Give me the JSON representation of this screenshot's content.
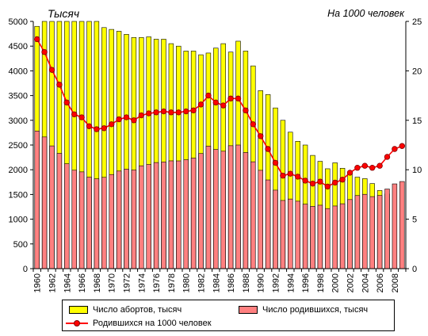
{
  "titles": {
    "left": "Тысяч",
    "right": "На 1000 человек"
  },
  "colors": {
    "abortions": "#ffff00",
    "births": "#ff8080",
    "rate": "#ff0000",
    "rate_marker_edge": "#800000",
    "bar_edge": "#000000"
  },
  "chart_data": {
    "type": "bar",
    "x": [
      1960,
      1961,
      1962,
      1963,
      1964,
      1965,
      1966,
      1967,
      1968,
      1969,
      1970,
      1971,
      1972,
      1973,
      1974,
      1975,
      1976,
      1977,
      1978,
      1979,
      1980,
      1981,
      1982,
      1983,
      1984,
      1985,
      1986,
      1987,
      1988,
      1989,
      1990,
      1991,
      1992,
      1993,
      1994,
      1995,
      1996,
      1997,
      1998,
      1999,
      2000,
      2001,
      2002,
      2003,
      2004,
      2005,
      2006,
      2007,
      2008,
      2009
    ],
    "x_tick_labels": [
      "1960",
      "1962",
      "1964",
      "1966",
      "1968",
      "1970",
      "1972",
      "1974",
      "1976",
      "1978",
      "1980",
      "1982",
      "1984",
      "1986",
      "1988",
      "1990",
      "1992",
      "1994",
      "1996",
      "1998",
      "2000",
      "2002",
      "2004",
      "2006",
      "2008"
    ],
    "y_left_ticks": [
      "0",
      "500",
      "1000",
      "1500",
      "2000",
      "2500",
      "3000",
      "3500",
      "4000",
      "4500",
      "5000"
    ],
    "y_right_ticks": [
      "0",
      "5",
      "10",
      "15",
      "20",
      "25"
    ],
    "ylim_left": [
      0,
      5000
    ],
    "ylim_right": [
      0,
      25
    ],
    "grid": false,
    "legend_position": "bottom",
    "series": [
      {
        "name": "Число абортов, тысяч",
        "kind": "bar",
        "axis": "left",
        "values": [
          4900,
          5000,
          5000,
          5000,
          5000,
          5000,
          5000,
          5000,
          5000,
          4875,
          4838,
          4800,
          4738,
          4675,
          4675,
          4688,
          4640,
          4640,
          4550,
          4500,
          4400,
          4400,
          4325,
          4360,
          4460,
          4550,
          4380,
          4600,
          4400,
          4100,
          3600,
          3520,
          3250,
          3000,
          2760,
          2575,
          2500,
          2290,
          2170,
          2020,
          2140,
          2030,
          1950,
          1850,
          1820,
          1720,
          1580,
          1510,
          0,
          0
        ]
      },
      {
        "name": "Число родившихся, тысяч",
        "kind": "bar",
        "axis": "left",
        "values": [
          2782,
          2663,
          2482,
          2332,
          2121,
          1991,
          1957,
          1851,
          1817,
          1847,
          1904,
          1974,
          2014,
          1995,
          2080,
          2107,
          2146,
          2157,
          2180,
          2179,
          2203,
          2237,
          2328,
          2478,
          2410,
          2375,
          2486,
          2500,
          2349,
          2161,
          1989,
          1794,
          1588,
          1379,
          1408,
          1364,
          1305,
          1260,
          1283,
          1215,
          1267,
          1312,
          1397,
          1478,
          1503,
          1457,
          1480,
          1610,
          1714,
          1762
        ]
      },
      {
        "name": "Родившихся на 1000 человек",
        "kind": "line",
        "axis": "right",
        "values": [
          23.2,
          21.9,
          20.1,
          18.6,
          16.8,
          15.6,
          15.3,
          14.4,
          14.1,
          14.2,
          14.6,
          15.1,
          15.3,
          15.0,
          15.5,
          15.7,
          15.8,
          15.9,
          15.8,
          15.8,
          15.9,
          16.0,
          16.6,
          17.5,
          16.8,
          16.5,
          17.2,
          17.2,
          16.0,
          14.6,
          13.4,
          12.1,
          10.7,
          9.4,
          9.6,
          9.3,
          8.9,
          8.6,
          8.8,
          8.3,
          8.7,
          9.0,
          9.7,
          10.2,
          10.4,
          10.2,
          10.4,
          11.3,
          12.1,
          12.4
        ]
      }
    ]
  }
}
